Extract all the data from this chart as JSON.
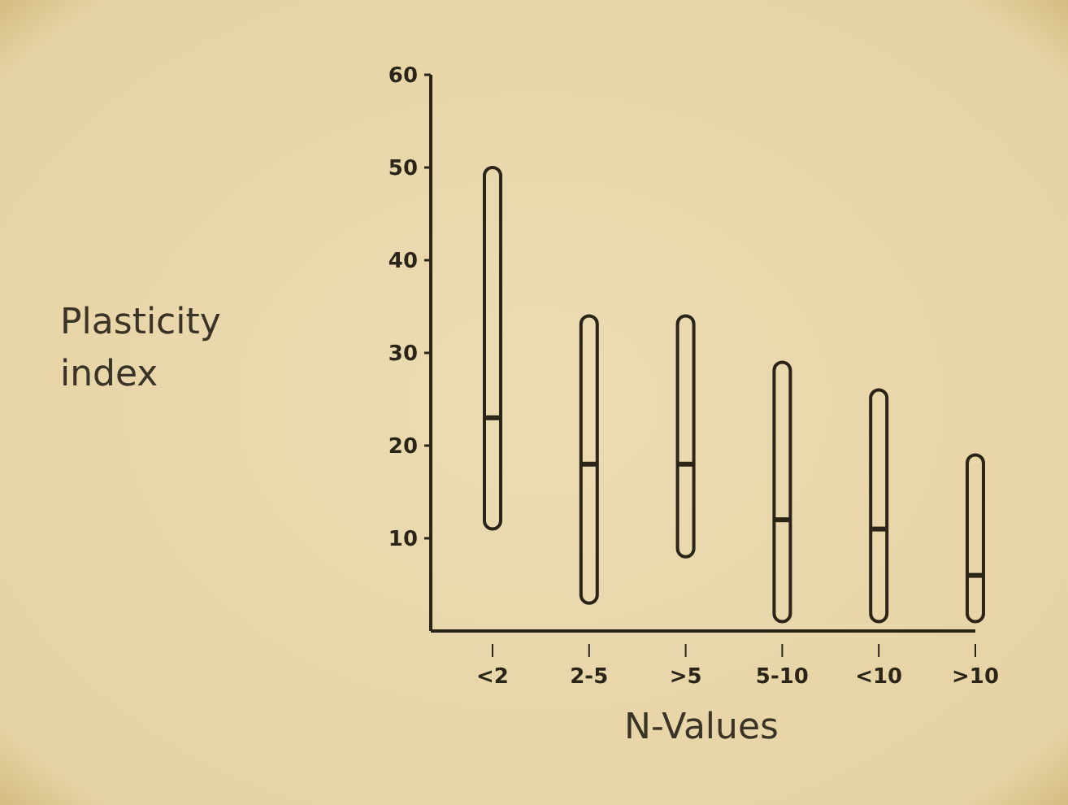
{
  "chart_data": {
    "type": "box",
    "xlabel": "N-Values",
    "ylabel": "Plasticity index",
    "categories": [
      "<2",
      "2-5",
      ">5",
      "5-10",
      "<10",
      ">10"
    ],
    "boxes": [
      {
        "low": 11,
        "q1": 11,
        "median": 23,
        "q3": 50,
        "high": 50
      },
      {
        "low": 3,
        "q1": 3,
        "median": 18,
        "q3": 34,
        "high": 34
      },
      {
        "low": 8,
        "q1": 8,
        "median": 18,
        "q3": 34,
        "high": 34
      },
      {
        "low": 1,
        "q1": 1,
        "median": 12,
        "q3": 29,
        "high": 29
      },
      {
        "low": 1,
        "q1": 1,
        "median": 11,
        "q3": 26,
        "high": 26
      },
      {
        "low": 1,
        "q1": 1,
        "median": 6,
        "q3": 19,
        "high": 19
      }
    ],
    "color": "#2b2418",
    "ylim": [
      0,
      60
    ],
    "yticks": [
      10,
      20,
      30,
      40,
      50,
      60
    ]
  }
}
